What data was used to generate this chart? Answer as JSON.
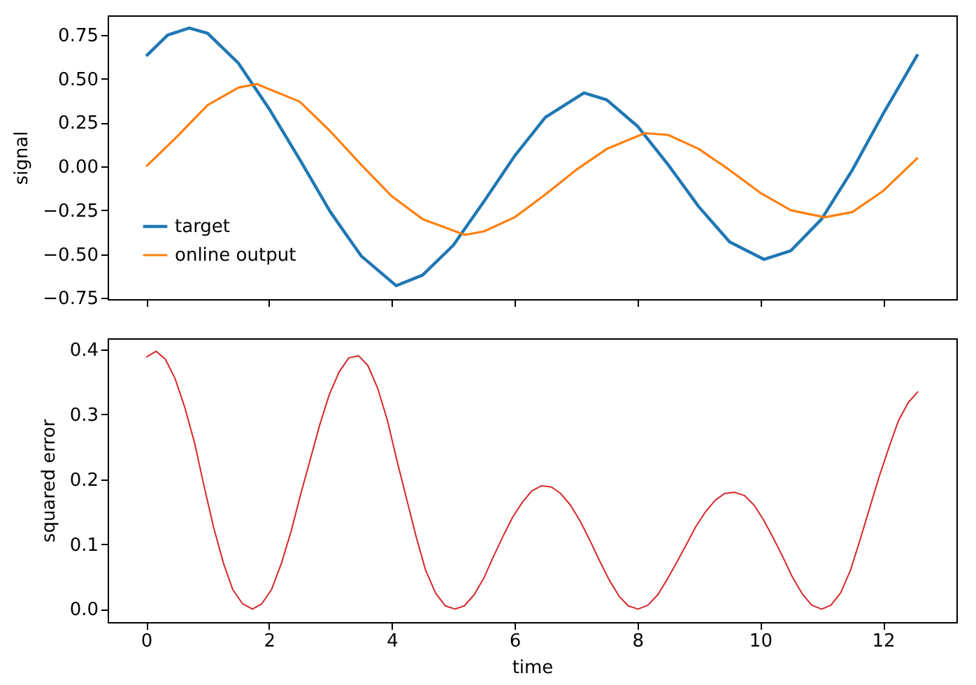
{
  "chart_data": [
    {
      "type": "line",
      "ylabel": "signal",
      "legend": "bottom left",
      "grid": false,
      "tick_labels": "y",
      "xlim": [
        -0.628,
        13.195
      ],
      "xticks": [
        0,
        2,
        4,
        6,
        8,
        10,
        12
      ],
      "ylim": [
        -0.757,
        0.862
      ],
      "yticks": [
        {
          "value": -0.75,
          "label": "−0.75"
        },
        {
          "value": -0.5,
          "label": "−0.50"
        },
        {
          "value": -0.25,
          "label": "−0.25"
        },
        {
          "value": 0,
          "label": "0.00"
        },
        0.25,
        {
          "value": 0.5,
          "label": "0.50"
        },
        0.75
      ],
      "series": [
        {
          "name": "target",
          "color": "#1f77b4",
          "x": [
            0,
            0.35,
            0.7,
            1.0,
            1.5,
            2.0,
            2.5,
            3.0,
            3.5,
            4.07,
            4.5,
            5.0,
            5.5,
            6.0,
            6.5,
            7.13,
            7.5,
            8.0,
            8.5,
            9.0,
            9.5,
            10.06,
            10.5,
            11.0,
            11.5,
            12.0,
            12.566
          ],
          "values": [
            0.63,
            0.75,
            0.79,
            0.76,
            0.59,
            0.33,
            0.04,
            -0.26,
            -0.51,
            -0.68,
            -0.62,
            -0.45,
            -0.2,
            0.06,
            0.28,
            0.42,
            0.38,
            0.23,
            0.01,
            -0.23,
            -0.43,
            -0.53,
            -0.48,
            -0.3,
            -0.02,
            0.3,
            0.64
          ]
        },
        {
          "name": "online output",
          "color": "#ff7f0e",
          "x": [
            0,
            0.5,
            1.0,
            1.5,
            1.8,
            2.5,
            3.0,
            3.5,
            4.0,
            4.5,
            5.19,
            5.5,
            6.0,
            6.5,
            7.0,
            7.5,
            8.12,
            8.5,
            9.0,
            9.5,
            10.0,
            10.5,
            11.05,
            11.5,
            12.0,
            12.566
          ],
          "values": [
            0,
            0.17,
            0.35,
            0.45,
            0.47,
            0.37,
            0.2,
            0.01,
            -0.17,
            -0.3,
            -0.39,
            -0.37,
            -0.29,
            -0.16,
            -0.02,
            0.1,
            0.19,
            0.18,
            0.1,
            -0.02,
            -0.15,
            -0.25,
            -0.29,
            -0.26,
            -0.14,
            0.05
          ]
        }
      ]
    },
    {
      "type": "line",
      "xlabel": "time",
      "ylabel": "squared error",
      "grid": false,
      "xlim": [
        -0.628,
        13.195
      ],
      "xticks": [
        0,
        2,
        4,
        6,
        8,
        10,
        12
      ],
      "ylim": [
        -0.02,
        0.417
      ],
      "yticks": [
        {
          "value": 0,
          "label": "0.0"
        },
        0.1,
        0.2,
        0.3,
        0.4
      ],
      "series": [
        {
          "color": "#d62728",
          "x": [
            0,
            0.16,
            0.31,
            0.47,
            0.63,
            0.79,
            0.94,
            1.1,
            1.26,
            1.41,
            1.57,
            1.73,
            1.88,
            2.04,
            2.2,
            2.36,
            2.51,
            2.67,
            2.83,
            2.98,
            3.14,
            3.3,
            3.46,
            3.61,
            3.77,
            3.93,
            4.08,
            4.24,
            4.4,
            4.55,
            4.71,
            4.87,
            5.03,
            5.18,
            5.34,
            5.5,
            5.65,
            5.81,
            5.97,
            6.13,
            6.28,
            6.44,
            6.6,
            6.75,
            6.91,
            7.07,
            7.23,
            7.38,
            7.54,
            7.7,
            7.85,
            8.01,
            8.17,
            8.33,
            8.48,
            8.64,
            8.8,
            8.95,
            9.11,
            9.27,
            9.42,
            9.58,
            9.74,
            9.9,
            10.05,
            10.21,
            10.37,
            10.52,
            10.68,
            10.84,
            11.0,
            11.15,
            11.31,
            11.47,
            11.62,
            11.78,
            11.94,
            12.1,
            12.25,
            12.41,
            12.57
          ],
          "values": [
            0.388,
            0.397,
            0.385,
            0.355,
            0.31,
            0.255,
            0.19,
            0.125,
            0.07,
            0.03,
            0.008,
            0.0,
            0.008,
            0.03,
            0.07,
            0.12,
            0.175,
            0.23,
            0.285,
            0.33,
            0.365,
            0.387,
            0.39,
            0.375,
            0.34,
            0.29,
            0.23,
            0.17,
            0.11,
            0.06,
            0.025,
            0.005,
            0.0,
            0.005,
            0.022,
            0.048,
            0.08,
            0.112,
            0.142,
            0.165,
            0.182,
            0.19,
            0.188,
            0.178,
            0.16,
            0.135,
            0.105,
            0.075,
            0.045,
            0.02,
            0.005,
            0.0,
            0.006,
            0.022,
            0.045,
            0.072,
            0.1,
            0.127,
            0.15,
            0.168,
            0.178,
            0.18,
            0.175,
            0.16,
            0.138,
            0.11,
            0.08,
            0.05,
            0.024,
            0.006,
            0.0,
            0.006,
            0.025,
            0.06,
            0.105,
            0.155,
            0.205,
            0.25,
            0.29,
            0.318,
            0.335
          ]
        }
      ]
    }
  ]
}
